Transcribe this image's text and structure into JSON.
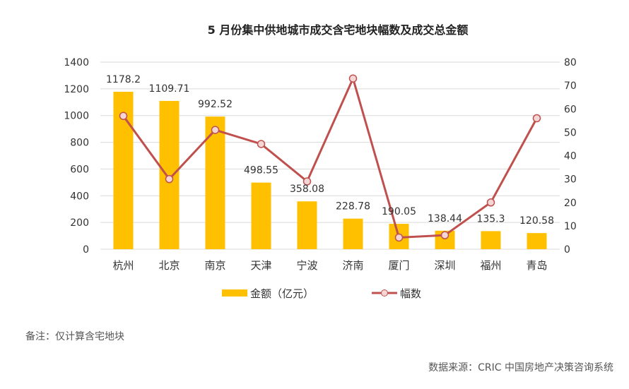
{
  "chart_data": {
    "type": "bar",
    "title": "5 月份集中供地城市成交含宅地块幅数及成交总金额",
    "categories": [
      "杭州",
      "北京",
      "南京",
      "天津",
      "宁波",
      "济南",
      "厦门",
      "深圳",
      "福州",
      "青岛"
    ],
    "series": [
      {
        "name": "金额（亿元）",
        "type": "bar",
        "axis": "left",
        "color": "#FFC000",
        "values": [
          1178.2,
          1109.71,
          992.52,
          498.55,
          358.08,
          228.78,
          190.05,
          138.44,
          135.3,
          120.58
        ],
        "labels": [
          "1178.2",
          "1109.71",
          "992.52",
          "498.55",
          "358.08",
          "228.78",
          "190.05",
          "138.44",
          "135.3",
          "120.58"
        ]
      },
      {
        "name": "幅数",
        "type": "line",
        "axis": "right",
        "color": "#C0504D",
        "values": [
          57,
          30,
          51,
          45,
          29,
          73,
          5,
          6,
          20,
          56
        ]
      }
    ],
    "ylim": [
      0,
      1400
    ],
    "yticks": [
      0,
      200,
      400,
      600,
      800,
      1000,
      1200,
      1400
    ],
    "y2lim": [
      0,
      80
    ],
    "y2ticks": [
      0,
      10,
      20,
      30,
      40,
      50,
      60,
      70,
      80
    ],
    "grid": true,
    "legend": "bottom"
  },
  "footer": {
    "note": "备注：仅计算含宅地块",
    "source": "数据来源：CRIC 中国房地产决策咨询系统"
  }
}
